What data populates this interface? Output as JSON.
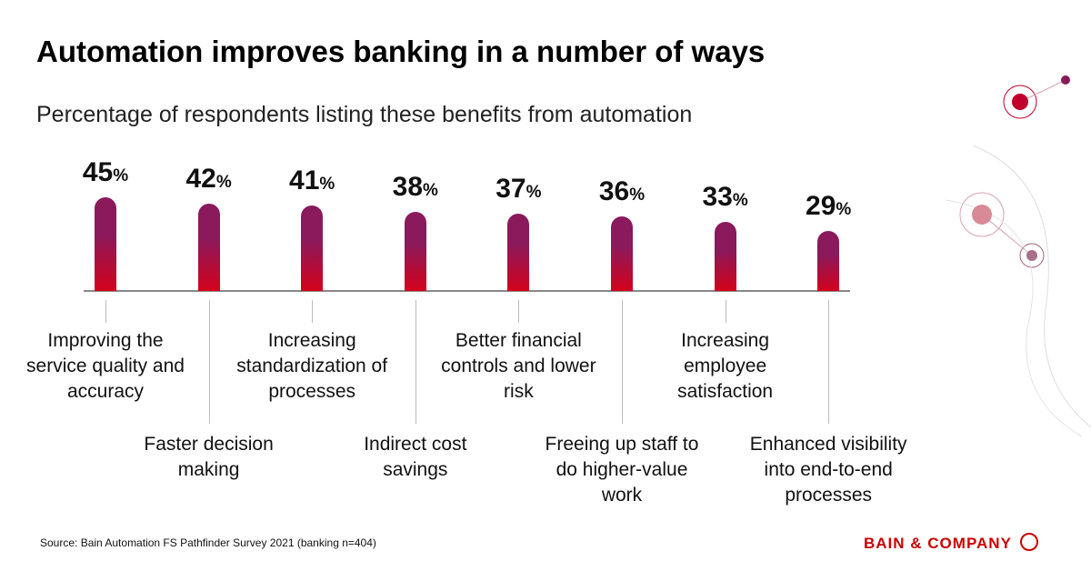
{
  "chart_data": {
    "type": "bar",
    "title": "Automation improves banking in a number of ways",
    "subtitle": "Percentage of respondents listing these benefits from automation",
    "unit": "%",
    "categories": [
      "Improving the service quality and accuracy",
      "Faster decision making",
      "Increasing standardization of processes",
      "Indirect cost savings",
      "Better financial controls and lower risk",
      "Freeing up staff to do higher-value work",
      "Increasing employee satisfaction",
      "Enhanced visibility into end-to-end processes"
    ],
    "values": [
      45,
      42,
      41,
      38,
      37,
      36,
      33,
      29
    ],
    "color": [
      "#8a1a5c",
      "#d4021c"
    ],
    "source": "Source: Bain Automation FS Pathfinder Survey 2021 (banking n=404)",
    "brand": "BAIN & COMPANY"
  }
}
